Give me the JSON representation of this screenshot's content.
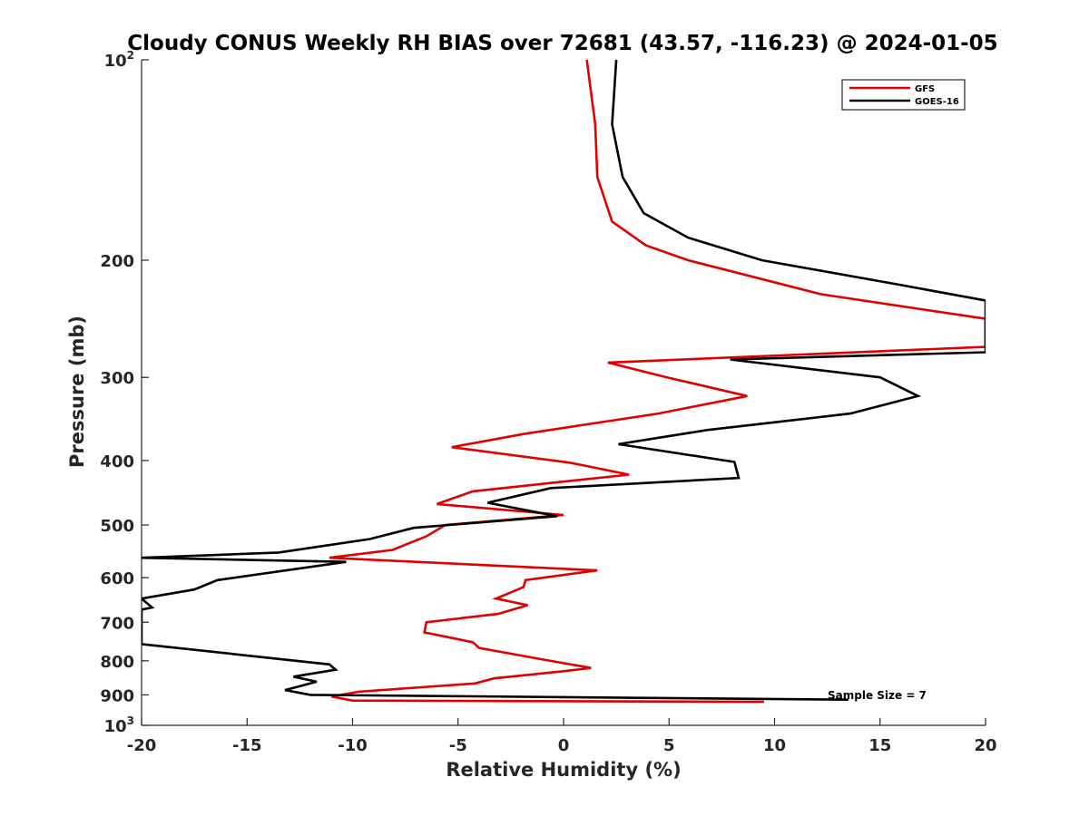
{
  "chart_data": {
    "type": "line",
    "title": "Cloudy CONUS Weekly RH BIAS over 72681 (43.57, -116.23) @ 2024-01-05",
    "xlabel": "Relative Humidity (%)",
    "ylabel": "Pressure (mb)",
    "xlim": [
      -20,
      20
    ],
    "ylim": [
      100,
      1000
    ],
    "y_scale": "log",
    "y_reversed": true,
    "grid": false,
    "legend_position": "top-right",
    "x_ticks": [
      "-20",
      "-15",
      "-10",
      "-5",
      "0",
      "5",
      "10",
      "15",
      "20"
    ],
    "y_ticks": [
      {
        "base": "10",
        "exp": "2"
      },
      {
        "text": "200"
      },
      {
        "text": "300"
      },
      {
        "text": "400"
      },
      {
        "text": "500"
      },
      {
        "text": "600"
      },
      {
        "text": "700"
      },
      {
        "text": "800"
      },
      {
        "text": "900"
      },
      {
        "base": "10",
        "exp": "3"
      }
    ],
    "annotation": "Sample Size = 7",
    "series": [
      {
        "name": "GFS",
        "color": "#e00000",
        "points": [
          [
            1.1,
            100
          ],
          [
            1.5,
            125
          ],
          [
            1.6,
            150
          ],
          [
            2.3,
            175
          ],
          [
            3.9,
            190
          ],
          [
            5.9,
            200
          ],
          [
            12.2,
            225
          ],
          [
            20.0,
            245
          ],
          [
            20.0,
            270
          ],
          [
            2.1,
            285
          ],
          [
            4.9,
            300
          ],
          [
            8.7,
            320
          ],
          [
            4.5,
            340
          ],
          [
            -1.9,
            365
          ],
          [
            -5.3,
            382
          ],
          [
            0.3,
            403
          ],
          [
            3.1,
            420
          ],
          [
            -4.3,
            445
          ],
          [
            -6.0,
            465
          ],
          [
            0.0,
            483
          ],
          [
            -5.6,
            500
          ],
          [
            -6.5,
            520
          ],
          [
            -8.1,
            545
          ],
          [
            -11.1,
            560
          ],
          [
            1.6,
            585
          ],
          [
            -1.8,
            605
          ],
          [
            -1.9,
            620
          ],
          [
            -3.2,
            645
          ],
          [
            -1.7,
            660
          ],
          [
            -3.1,
            680
          ],
          [
            -6.5,
            700
          ],
          [
            -6.6,
            725
          ],
          [
            -4.3,
            750
          ],
          [
            -4.0,
            765
          ],
          [
            -1.1,
            795
          ],
          [
            1.3,
            820
          ],
          [
            -0.1,
            830
          ],
          [
            -3.3,
            850
          ],
          [
            -4.2,
            865
          ],
          [
            -9.7,
            890
          ],
          [
            -11.0,
            905
          ],
          [
            -10.0,
            918
          ],
          [
            9.5,
            922
          ]
        ]
      },
      {
        "name": "GOES-16",
        "color": "#000000",
        "points": [
          [
            2.5,
            100
          ],
          [
            2.3,
            125
          ],
          [
            2.8,
            150
          ],
          [
            3.8,
            170
          ],
          [
            5.9,
            185
          ],
          [
            9.4,
            200
          ],
          [
            16.0,
            218
          ],
          [
            20.0,
            230
          ],
          [
            20.0,
            275
          ],
          [
            7.9,
            282
          ],
          [
            15.0,
            300
          ],
          [
            16.8,
            320
          ],
          [
            13.6,
            340
          ],
          [
            6.8,
            360
          ],
          [
            2.6,
            378
          ],
          [
            8.1,
            402
          ],
          [
            8.3,
            425
          ],
          [
            -0.6,
            440
          ],
          [
            -3.6,
            463
          ],
          [
            -0.3,
            485
          ],
          [
            -7.1,
            505
          ],
          [
            -9.2,
            525
          ],
          [
            -13.5,
            550
          ],
          [
            -20.0,
            560
          ],
          [
            -10.3,
            568
          ],
          [
            -16.4,
            605
          ],
          [
            -17.5,
            625
          ],
          [
            -20.0,
            645
          ],
          [
            -19.5,
            665
          ],
          [
            -20.0,
            670
          ],
          [
            -20.0,
            755
          ],
          [
            -11.1,
            810
          ],
          [
            -10.8,
            825
          ],
          [
            -12.8,
            845
          ],
          [
            -11.7,
            860
          ],
          [
            -13.2,
            885
          ],
          [
            -12.0,
            900
          ],
          [
            13.5,
            915
          ]
        ]
      }
    ]
  }
}
